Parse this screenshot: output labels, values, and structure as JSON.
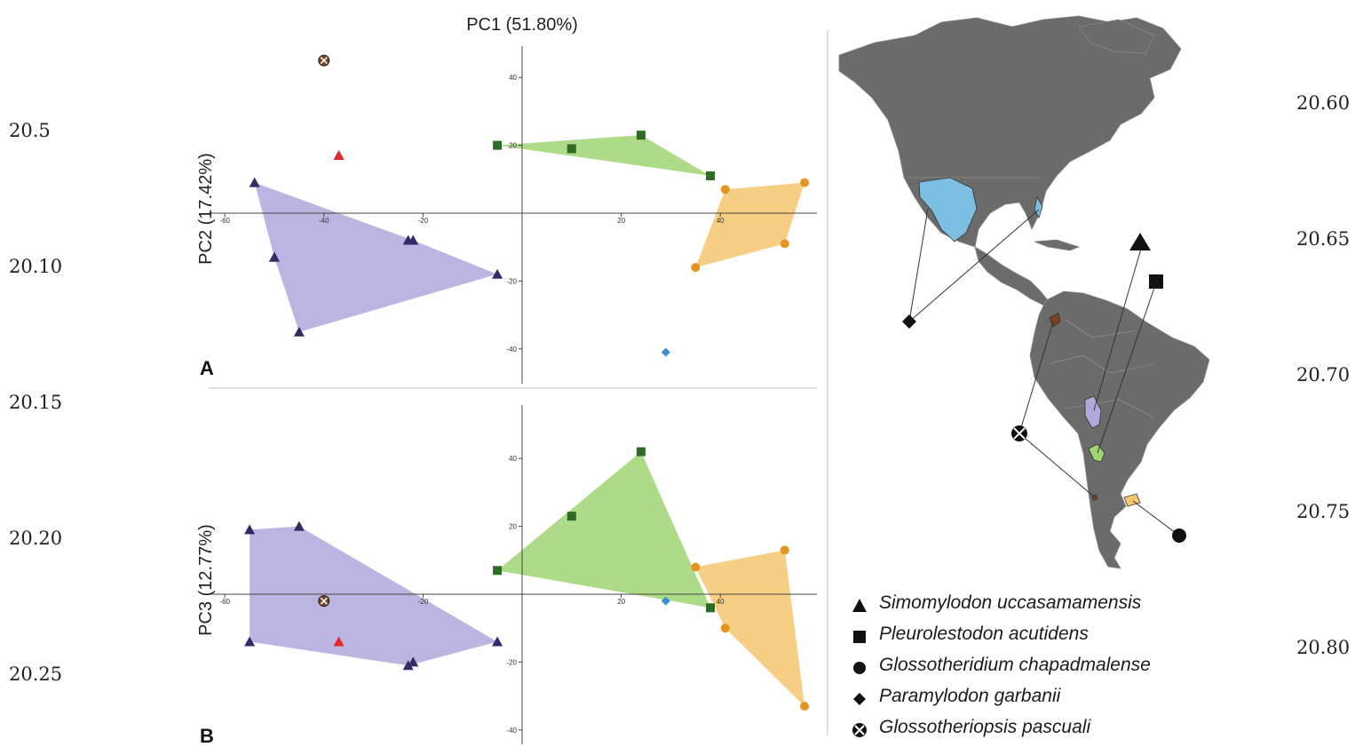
{
  "margin_left": [
    "20.5",
    "20.10",
    "20.15",
    "20.20",
    "20.25"
  ],
  "margin_right": [
    "20.60",
    "20.65",
    "20.70",
    "20.75",
    "20.80"
  ],
  "colors": {
    "purple": "#b2a8dc",
    "green": "#9fd572",
    "orange": "#f5c56f",
    "blue": "#7cbfe3",
    "triangle": "#2f2c66",
    "square": "#2e6b24",
    "circle": "#e69420",
    "diamond": "#3b8fd0",
    "red": "#e52727",
    "pasc": "#7a4222",
    "map_land": "#6b6b6b"
  },
  "chart_data": [
    {
      "type": "scatter",
      "panel_label": "A",
      "title": "PC1 (51.80%)",
      "xlabel": "",
      "ylabel": "PC2 (17.42%)",
      "xticks": [
        -60,
        -40,
        -20,
        20,
        40
      ],
      "yticks": [
        40,
        20,
        -20,
        -40
      ],
      "tick_labels_x": [
        "-60",
        "-40",
        "-20",
        "20",
        "40"
      ],
      "tick_labels_y": [
        "40",
        "20",
        "-20",
        "-40"
      ],
      "series": [
        {
          "group": "simomylodon",
          "marker": "triangle",
          "hull": true,
          "points": [
            [
              -54,
              9
            ],
            [
              -50,
              -13
            ],
            [
              -50,
              -13
            ],
            [
              -45,
              -35
            ],
            [
              -23,
              -8
            ],
            [
              -22,
              -8
            ],
            [
              -5,
              -18
            ]
          ]
        },
        {
          "group": "simomylodon_red",
          "marker": "triangle",
          "hull": false,
          "points": [
            [
              -37,
              17
            ]
          ]
        },
        {
          "group": "pleurolestodon",
          "marker": "square",
          "hull": true,
          "points": [
            [
              -5,
              20
            ],
            [
              10,
              19
            ],
            [
              24,
              23
            ],
            [
              38,
              11
            ]
          ]
        },
        {
          "group": "glossotheridium",
          "marker": "circle",
          "hull": true,
          "points": [
            [
              41,
              7
            ],
            [
              57,
              9
            ],
            [
              35,
              -16
            ],
            [
              53,
              -9
            ]
          ]
        },
        {
          "group": "paramylodon",
          "marker": "diamond",
          "hull": false,
          "points": [
            [
              29,
              -41
            ]
          ]
        },
        {
          "group": "glossotheriopsis",
          "marker": "pasc",
          "hull": false,
          "points": [
            [
              -40,
              45
            ]
          ]
        }
      ]
    },
    {
      "type": "scatter",
      "panel_label": "B",
      "title": "",
      "xlabel": "",
      "ylabel": "PC3 (12.77%)",
      "xticks": [
        -60,
        -20,
        20,
        40
      ],
      "yticks": [
        40,
        20,
        -20,
        -40
      ],
      "tick_labels_x": [
        "-60",
        "-20",
        "20",
        "40"
      ],
      "tick_labels_y": [
        "40",
        "20",
        "-20",
        "-40"
      ],
      "series": [
        {
          "group": "simomylodon",
          "marker": "triangle",
          "hull": true,
          "points": [
            [
              -55,
              19
            ],
            [
              -45,
              20
            ],
            [
              -55,
              -14
            ],
            [
              -5,
              -14
            ],
            [
              -23,
              -21
            ],
            [
              -22,
              -20
            ]
          ]
        },
        {
          "group": "simomylodon_red",
          "marker": "triangle",
          "hull": false,
          "points": [
            [
              -37,
              -14
            ]
          ]
        },
        {
          "group": "pleurolestodon",
          "marker": "square",
          "hull": true,
          "points": [
            [
              -5,
              7
            ],
            [
              10,
              23
            ],
            [
              24,
              42
            ],
            [
              38,
              -4
            ]
          ]
        },
        {
          "group": "glossotheridium",
          "marker": "circle",
          "hull": true,
          "points": [
            [
              35,
              8
            ],
            [
              53,
              13
            ],
            [
              41,
              -10
            ],
            [
              57,
              -33
            ]
          ]
        },
        {
          "group": "paramylodon",
          "marker": "diamond",
          "hull": false,
          "points": [
            [
              29,
              -2
            ]
          ]
        },
        {
          "group": "glossotheriopsis",
          "marker": "pasc",
          "hull": false,
          "points": [
            [
              -40,
              -2
            ]
          ]
        }
      ]
    }
  ],
  "legend": [
    {
      "symbol": "triangle",
      "name": "Simomylodon uccasamamensis"
    },
    {
      "symbol": "square",
      "name": "Pleurolestodon acutidens"
    },
    {
      "symbol": "circle",
      "name": "Glossotheridium chapadmalense"
    },
    {
      "symbol": "diamond",
      "name": "Paramylodon garbanii"
    },
    {
      "symbol": "cross",
      "name": "Glossotheriopsis pascuali"
    }
  ]
}
